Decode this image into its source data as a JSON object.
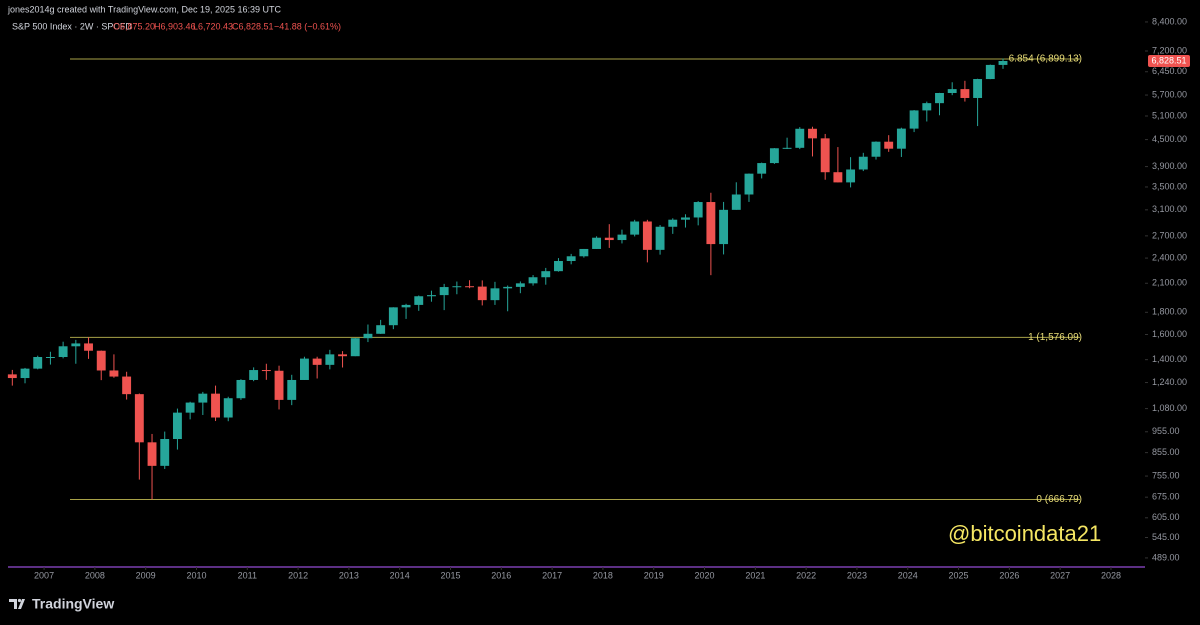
{
  "header": "jones2014g created with TradingView.com, Dec 19, 2025 16:39 UTC",
  "legend": {
    "symbol": "S&P 500 Index · 2W · SPCFD",
    "open": "O6,875.20",
    "high": "H6,903.46",
    "low": "L6,720.43",
    "close": "C6,828.51",
    "change": "−41.88 (−0.61%)"
  },
  "watermark": "@bitcoindata21",
  "footer": "TradingView",
  "chart_data": {
    "type": "candlestick",
    "log_scale": true,
    "up_color": "#26a69a",
    "down_color": "#ef5350",
    "xlim": [
      2006.29,
      2028.67
    ],
    "xticks": [
      2007,
      2008,
      2009,
      2010,
      2011,
      2012,
      2013,
      2014,
      2015,
      2016,
      2017,
      2018,
      2019,
      2020,
      2021,
      2022,
      2023,
      2024,
      2025,
      2026,
      2027,
      2028
    ],
    "ylim": [
      471,
      8950
    ],
    "yticks": [
      {
        "value": 489,
        "label": "489.00"
      },
      {
        "value": 545,
        "label": "545.00"
      },
      {
        "value": 605,
        "label": "605.00"
      },
      {
        "value": 675,
        "label": "675.00"
      },
      {
        "value": 755,
        "label": "755.00"
      },
      {
        "value": 855,
        "label": "855.00"
      },
      {
        "value": 955,
        "label": "955.00"
      },
      {
        "value": 1080,
        "label": "1,080.00"
      },
      {
        "value": 1240,
        "label": "1,240.00"
      },
      {
        "value": 1400,
        "label": "1,400.00"
      },
      {
        "value": 1600,
        "label": "1,600.00"
      },
      {
        "value": 1800,
        "label": "1,800.00"
      },
      {
        "value": 2100,
        "label": "2,100.00"
      },
      {
        "value": 2400,
        "label": "2,400.00"
      },
      {
        "value": 2700,
        "label": "2,700.00"
      },
      {
        "value": 3100,
        "label": "3,100.00"
      },
      {
        "value": 3500,
        "label": "3,500.00"
      },
      {
        "value": 3900,
        "label": "3,900.00"
      },
      {
        "value": 4500,
        "label": "4,500.00"
      },
      {
        "value": 5100,
        "label": "5,100.00"
      },
      {
        "value": 5700,
        "label": "5,700.00"
      },
      {
        "value": 6450,
        "label": "6,450.00"
      },
      {
        "value": 7200,
        "label": "7,200.00"
      },
      {
        "value": 8400,
        "label": "8,400.00"
      }
    ],
    "x": [
      2006.375,
      2006.625,
      2006.875,
      2007.125,
      2007.375,
      2007.625,
      2007.875,
      2008.125,
      2008.375,
      2008.625,
      2008.875,
      2009.125,
      2009.375,
      2009.625,
      2009.875,
      2010.125,
      2010.375,
      2010.625,
      2010.875,
      2011.125,
      2011.375,
      2011.625,
      2011.875,
      2012.125,
      2012.375,
      2012.625,
      2012.875,
      2013.125,
      2013.375,
      2013.625,
      2013.875,
      2014.125,
      2014.375,
      2014.625,
      2014.875,
      2015.125,
      2015.375,
      2015.625,
      2015.875,
      2016.125,
      2016.375,
      2016.625,
      2016.875,
      2017.125,
      2017.375,
      2017.625,
      2017.875,
      2018.125,
      2018.375,
      2018.625,
      2018.875,
      2019.125,
      2019.375,
      2019.625,
      2019.875,
      2020.125,
      2020.375,
      2020.625,
      2020.875,
      2021.125,
      2021.375,
      2021.625,
      2021.875,
      2022.125,
      2022.375,
      2022.625,
      2022.875,
      2023.125,
      2023.375,
      2023.625,
      2023.875,
      2024.125,
      2024.375,
      2024.625,
      2024.875,
      2025.125,
      2025.375,
      2025.625,
      2025.875
    ],
    "open": [
      1295,
      1270,
      1335,
      1420,
      1420,
      1503,
      1526,
      1468,
      1322,
      1280,
      1166,
      903,
      797,
      919,
      1057,
      1115,
      1169,
      1030,
      1141,
      1257,
      1325,
      1320,
      1131,
      1257,
      1408,
      1362,
      1440,
      1426,
      1569,
      1606,
      1681,
      1848,
      1872,
      1960,
      1972,
      2058,
      2067,
      2063,
      1920,
      2044,
      2060,
      2099,
      2168,
      2239,
      2363,
      2423,
      2519,
      2674,
      2641,
      2718,
      2914,
      2507,
      2834,
      2942,
      2977,
      3231,
      2585,
      3100,
      3363,
      3756,
      3973,
      4298,
      4308,
      4766,
      4530,
      3785,
      3586,
      3840,
      4109,
      4450,
      4288,
      4770,
      5254,
      5460,
      5762,
      5882,
      5612,
      6205,
      6688
    ],
    "high": [
      1326,
      1340,
      1430,
      1460,
      1540,
      1555,
      1576,
      1470,
      1440,
      1313,
      1170,
      944,
      956,
      1080,
      1120,
      1180,
      1220,
      1150,
      1262,
      1344,
      1370,
      1356,
      1292,
      1422,
      1422,
      1475,
      1465,
      1570,
      1687,
      1729,
      1849,
      1883,
      1968,
      2019,
      2093,
      2119,
      2134,
      2132,
      2116,
      2075,
      2120,
      2193,
      2278,
      2400,
      2454,
      2519,
      2694,
      2873,
      2791,
      2940,
      2940,
      2860,
      2964,
      3028,
      3247,
      3394,
      3233,
      3588,
      3760,
      3983,
      4302,
      4546,
      4808,
      4818,
      4637,
      4325,
      4100,
      4195,
      4458,
      4607,
      4793,
      5264,
      5505,
      5767,
      6100,
      6147,
      6215,
      6700,
      6920
    ],
    "low": [
      1220,
      1235,
      1330,
      1364,
      1410,
      1370,
      1406,
      1256,
      1272,
      1133,
      741,
      667,
      784,
      869,
      1020,
      1044,
      1011,
      1010,
      1131,
      1249,
      1258,
      1075,
      1100,
      1257,
      1267,
      1330,
      1343,
      1426,
      1537,
      1605,
      1646,
      1738,
      1814,
      1904,
      1821,
      1981,
      2045,
      1867,
      1872,
      1810,
      1992,
      2074,
      2084,
      2233,
      2322,
      2406,
      2520,
      2533,
      2594,
      2692,
      2346,
      2444,
      2729,
      2822,
      2855,
      2192,
      2447,
      3101,
      3233,
      3662,
      3955,
      4280,
      4279,
      4115,
      3637,
      3585,
      3492,
      3808,
      4048,
      4217,
      4104,
      4683,
      4954,
      5120,
      5696,
      5506,
      4835,
      6200,
      6550
    ],
    "close": [
      1270,
      1335,
      1420,
      1420,
      1503,
      1526,
      1468,
      1322,
      1280,
      1166,
      903,
      797,
      919,
      1057,
      1115,
      1169,
      1030,
      1141,
      1257,
      1325,
      1320,
      1131,
      1257,
      1408,
      1362,
      1440,
      1426,
      1569,
      1606,
      1681,
      1848,
      1872,
      1960,
      1972,
      2058,
      2067,
      2063,
      1920,
      2044,
      2060,
      2099,
      2168,
      2239,
      2363,
      2423,
      2519,
      2674,
      2641,
      2718,
      2914,
      2507,
      2834,
      2942,
      2977,
      3231,
      2585,
      3100,
      3363,
      3756,
      3973,
      4298,
      4308,
      4766,
      4530,
      3785,
      3586,
      3840,
      4109,
      4450,
      4288,
      4770,
      5254,
      5460,
      5762,
      5882,
      5612,
      6205,
      6688,
      6828.51
    ],
    "last_price": {
      "value": 6828.51,
      "label": "6,828.51"
    },
    "fib_color": "#a8a248",
    "fib_levels": [
      {
        "price": 6899.13,
        "label": "6.854 (6,899.13)"
      },
      {
        "price": 1576.09,
        "label": "1 (1,576.09)"
      },
      {
        "price": 666.79,
        "label": "0 (666.79)"
      }
    ]
  }
}
